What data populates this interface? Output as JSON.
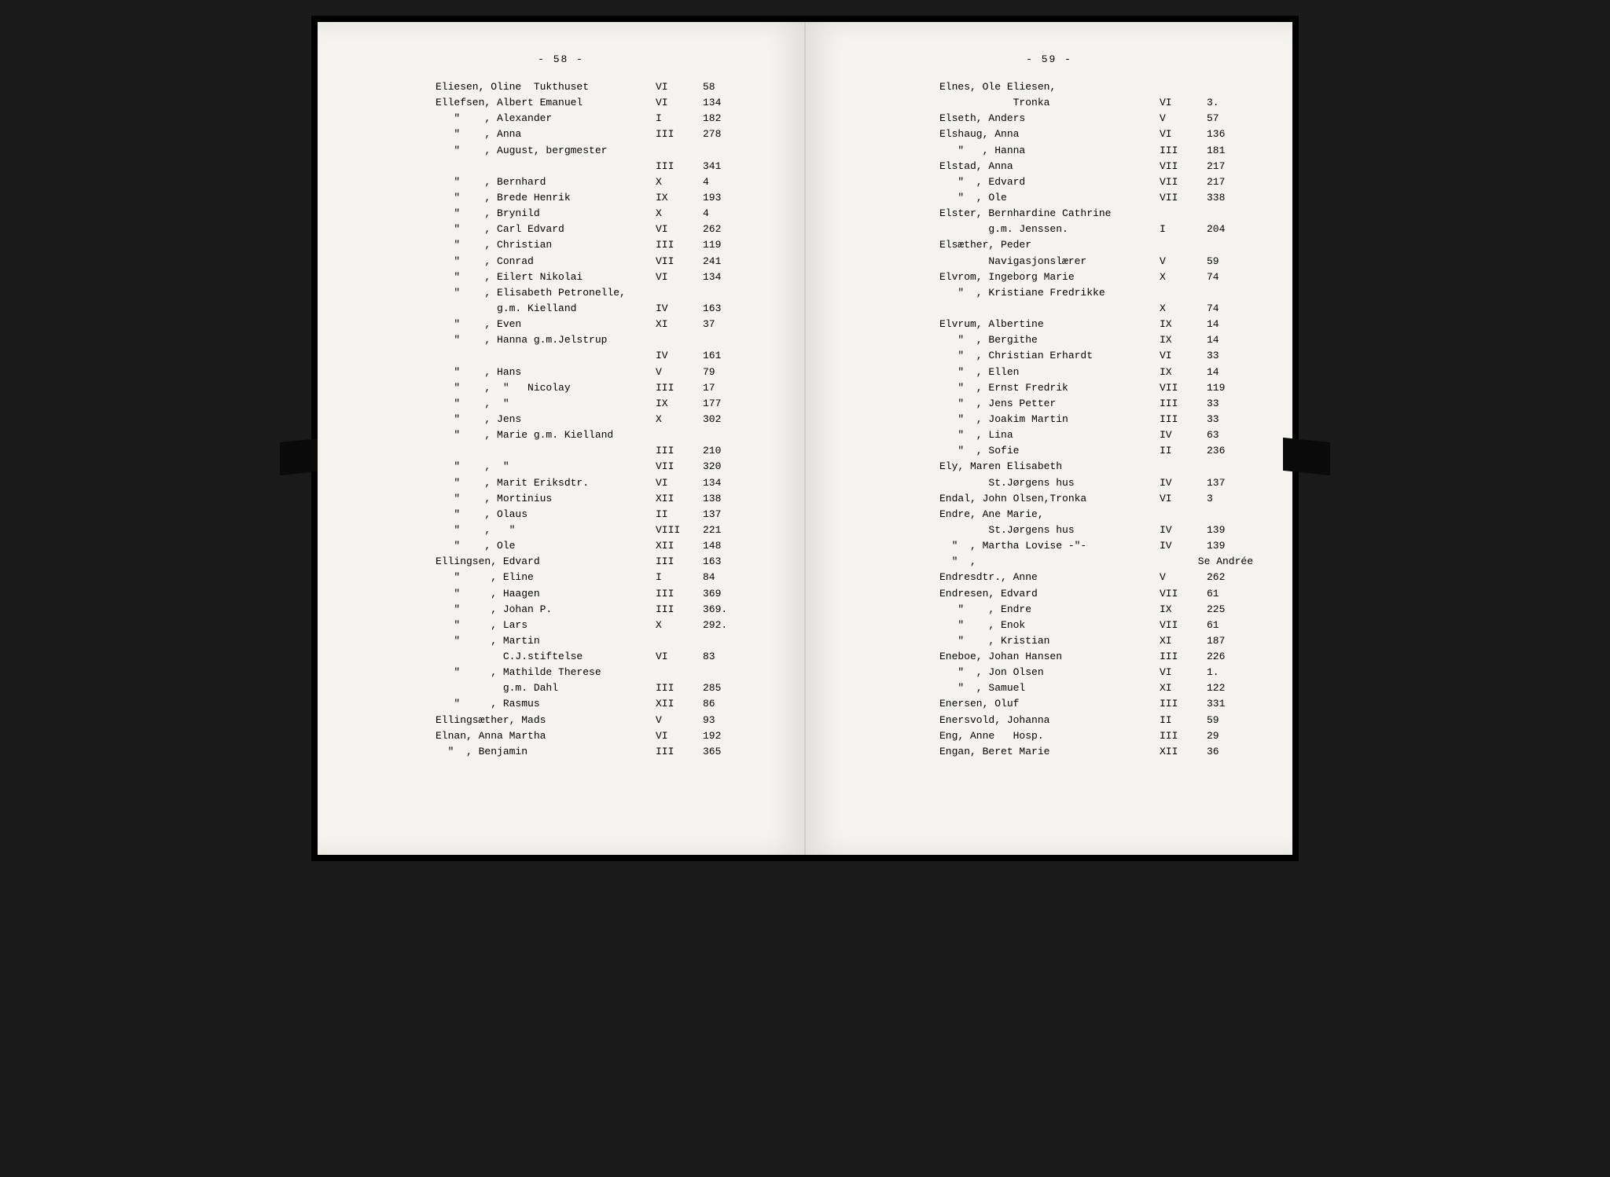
{
  "left": {
    "page_number": "- 58 -",
    "rows": [
      {
        "name": "Eliesen, Oline  Tukthuset",
        "vol": "VI",
        "pg": "58"
      },
      {
        "name": "Ellefsen, Albert Emanuel",
        "vol": "VI",
        "pg": "134"
      },
      {
        "name": "   \"    , Alexander",
        "vol": "I",
        "pg": "182"
      },
      {
        "name": "   \"    , Anna",
        "vol": "III",
        "pg": "278"
      },
      {
        "name": "   \"    , August, bergmester",
        "vol": "",
        "pg": ""
      },
      {
        "name": "",
        "vol": "III",
        "pg": "341"
      },
      {
        "name": "   \"    , Bernhard",
        "vol": "X",
        "pg": "4"
      },
      {
        "name": "   \"    , Brede Henrik",
        "vol": "IX",
        "pg": "193"
      },
      {
        "name": "   \"    , Brynild",
        "vol": "X",
        "pg": "4"
      },
      {
        "name": "   \"    , Carl Edvard",
        "vol": "VI",
        "pg": "262"
      },
      {
        "name": "   \"    , Christian",
        "vol": "III",
        "pg": "119"
      },
      {
        "name": "   \"    , Conrad",
        "vol": "VII",
        "pg": "241"
      },
      {
        "name": "   \"    , Eilert Nikolai",
        "vol": "VI",
        "pg": "134"
      },
      {
        "name": "   \"    , Elisabeth Petronelle,",
        "vol": "",
        "pg": ""
      },
      {
        "name": "          g.m. Kielland",
        "vol": "IV",
        "pg": "163"
      },
      {
        "name": "   \"    , Even",
        "vol": "XI",
        "pg": "37"
      },
      {
        "name": "   \"    , Hanna g.m.Jelstrup",
        "vol": "",
        "pg": ""
      },
      {
        "name": "",
        "vol": "IV",
        "pg": "161"
      },
      {
        "name": "   \"    , Hans",
        "vol": "V",
        "pg": "79"
      },
      {
        "name": "   \"    ,  \"   Nicolay",
        "vol": "III",
        "pg": "17"
      },
      {
        "name": "   \"    ,  \"",
        "vol": "IX",
        "pg": "177"
      },
      {
        "name": "   \"    , Jens",
        "vol": "X",
        "pg": "302"
      },
      {
        "name": "   \"    , Marie g.m. Kielland",
        "vol": "",
        "pg": ""
      },
      {
        "name": "",
        "vol": "III",
        "pg": "210"
      },
      {
        "name": "   \"    ,  \"",
        "vol": "VII",
        "pg": "320"
      },
      {
        "name": "   \"    , Marit Eriksdtr.",
        "vol": "VI",
        "pg": "134"
      },
      {
        "name": "   \"    , Mortinius",
        "vol": "XII",
        "pg": "138"
      },
      {
        "name": "   \"    , Olaus",
        "vol": "II",
        "pg": "137"
      },
      {
        "name": "   \"    ,   \"",
        "vol": "VIII",
        "pg": "221"
      },
      {
        "name": "   \"    , Ole",
        "vol": "XII",
        "pg": "148"
      },
      {
        "name": "Ellingsen, Edvard",
        "vol": "III",
        "pg": "163"
      },
      {
        "name": "   \"     , Eline",
        "vol": "I",
        "pg": "84"
      },
      {
        "name": "   \"     , Haagen",
        "vol": "III",
        "pg": "369"
      },
      {
        "name": "   \"     , Johan P.",
        "vol": "III",
        "pg": "369."
      },
      {
        "name": "   \"     , Lars",
        "vol": "X",
        "pg": "292."
      },
      {
        "name": "   \"     , Martin",
        "vol": "",
        "pg": ""
      },
      {
        "name": "           C.J.stiftelse",
        "vol": "VI",
        "pg": "83"
      },
      {
        "name": "   \"     , Mathilde Therese",
        "vol": "",
        "pg": ""
      },
      {
        "name": "           g.m. Dahl",
        "vol": "III",
        "pg": "285"
      },
      {
        "name": "   \"     , Rasmus",
        "vol": "XII",
        "pg": "86"
      },
      {
        "name": "Ellingsæther, Mads",
        "vol": "V",
        "pg": "93"
      },
      {
        "name": "Elnan, Anna Martha",
        "vol": "VI",
        "pg": "192"
      },
      {
        "name": "  \"  , Benjamin",
        "vol": "III",
        "pg": "365"
      }
    ]
  },
  "right": {
    "page_number": "- 59 -",
    "rows": [
      {
        "name": "Elnes, Ole Eliesen,",
        "vol": "",
        "pg": ""
      },
      {
        "name": "            Tronka",
        "vol": "VI",
        "pg": "3."
      },
      {
        "name": "Elseth, Anders",
        "vol": "V",
        "pg": "57"
      },
      {
        "name": "Elshaug, Anna",
        "vol": "VI",
        "pg": "136"
      },
      {
        "name": "   \"   , Hanna",
        "vol": "III",
        "pg": "181"
      },
      {
        "name": "Elstad, Anna",
        "vol": "VII",
        "pg": "217"
      },
      {
        "name": "   \"  , Edvard",
        "vol": "VII",
        "pg": "217"
      },
      {
        "name": "   \"  , Ole",
        "vol": "VII",
        "pg": "338"
      },
      {
        "name": "Elster, Bernhardine Cathrine",
        "vol": "",
        "pg": ""
      },
      {
        "name": "        g.m. Jenssen.",
        "vol": "I",
        "pg": "204"
      },
      {
        "name": "Elsæther, Peder",
        "vol": "",
        "pg": ""
      },
      {
        "name": "        Navigasjonslærer",
        "vol": "V",
        "pg": "59"
      },
      {
        "name": "Elvrom, Ingeborg Marie",
        "vol": "X",
        "pg": "74"
      },
      {
        "name": "   \"  , Kristiane Fredrikke",
        "vol": "",
        "pg": ""
      },
      {
        "name": "",
        "vol": "X",
        "pg": "74"
      },
      {
        "name": "Elvrum, Albertine",
        "vol": "IX",
        "pg": "14"
      },
      {
        "name": "   \"  , Bergithe",
        "vol": "IX",
        "pg": "14"
      },
      {
        "name": "   \"  , Christian Erhardt",
        "vol": "VI",
        "pg": "33"
      },
      {
        "name": "   \"  , Ellen",
        "vol": "IX",
        "pg": "14"
      },
      {
        "name": "   \"  , Ernst Fredrik",
        "vol": "VII",
        "pg": "119"
      },
      {
        "name": "   \"  , Jens Petter",
        "vol": "III",
        "pg": "33"
      },
      {
        "name": "   \"  , Joakim Martin",
        "vol": "III",
        "pg": "33"
      },
      {
        "name": "   \"  , Lina",
        "vol": "IV",
        "pg": "63"
      },
      {
        "name": "   \"  , Sofie",
        "vol": "II",
        "pg": "236"
      },
      {
        "name": "Ely, Maren Elisabeth",
        "vol": "",
        "pg": ""
      },
      {
        "name": "        St.Jørgens hus",
        "vol": "IV",
        "pg": "137"
      },
      {
        "name": "Endal, John Olsen,Tronka",
        "vol": "VI",
        "pg": "3"
      },
      {
        "name": "Endre, Ane Marie,",
        "vol": "",
        "pg": ""
      },
      {
        "name": "        St.Jørgens hus",
        "vol": "IV",
        "pg": "139"
      },
      {
        "name": "  \"  , Martha Lovise -\"-",
        "vol": "IV",
        "pg": "139"
      },
      {
        "name": "  \"  ,",
        "vol": "",
        "pg": "",
        "note": "Se Andrée"
      },
      {
        "name": "Endresdtr., Anne",
        "vol": "V",
        "pg": "262"
      },
      {
        "name": "Endresen, Edvard",
        "vol": "VII",
        "pg": "61"
      },
      {
        "name": "   \"    , Endre",
        "vol": "IX",
        "pg": "225"
      },
      {
        "name": "   \"    , Enok",
        "vol": "VII",
        "pg": "61"
      },
      {
        "name": "   \"    , Kristian",
        "vol": "XI",
        "pg": "187"
      },
      {
        "name": "Eneboe, Johan Hansen",
        "vol": "III",
        "pg": "226"
      },
      {
        "name": "   \"  , Jon Olsen",
        "vol": "VI",
        "pg": "1."
      },
      {
        "name": "   \"  , Samuel",
        "vol": "XI",
        "pg": "122"
      },
      {
        "name": "Enersen, Oluf",
        "vol": "III",
        "pg": "331"
      },
      {
        "name": "Enersvold, Johanna",
        "vol": "II",
        "pg": "59"
      },
      {
        "name": "Eng, Anne   Hosp.",
        "vol": "III",
        "pg": "29"
      },
      {
        "name": "Engan, Beret Marie",
        "vol": "XII",
        "pg": "36"
      }
    ]
  }
}
